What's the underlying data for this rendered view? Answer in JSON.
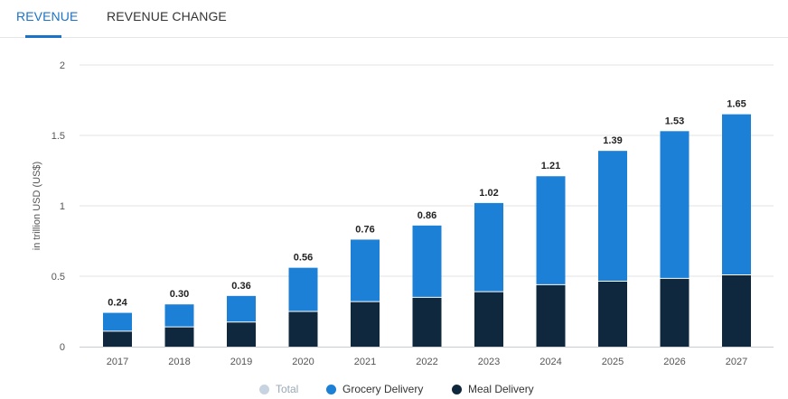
{
  "tabs": [
    {
      "label": "REVENUE",
      "active": true
    },
    {
      "label": "REVENUE CHANGE",
      "active": false
    }
  ],
  "colors": {
    "grocery": "#1b80d6",
    "meal": "#10283d",
    "total": "#c7d3e0",
    "accent": "#1a73c8"
  },
  "legend": [
    {
      "label": "Total",
      "color": "#c7d3e0",
      "disabled": true
    },
    {
      "label": "Grocery Delivery",
      "color": "#1b80d6",
      "disabled": false
    },
    {
      "label": "Meal Delivery",
      "color": "#10283d",
      "disabled": false
    }
  ],
  "chart_data": {
    "type": "bar",
    "stacked": true,
    "ylabel": "in trillion USD (US$)",
    "ylim": [
      0,
      2
    ],
    "yticks": [
      "0",
      "0.5",
      "1",
      "1.5",
      "2"
    ],
    "categories": [
      "2017",
      "2018",
      "2019",
      "2020",
      "2021",
      "2022",
      "2023",
      "2024",
      "2025",
      "2026",
      "2027"
    ],
    "series": [
      {
        "name": "Meal Delivery",
        "values": [
          0.11,
          0.14,
          0.175,
          0.25,
          0.32,
          0.35,
          0.39,
          0.44,
          0.465,
          0.485,
          0.51
        ]
      },
      {
        "name": "Grocery Delivery",
        "values": [
          0.13,
          0.16,
          0.185,
          0.31,
          0.44,
          0.51,
          0.63,
          0.77,
          0.925,
          1.045,
          1.14
        ]
      }
    ],
    "totals": [
      "0.24",
      "0.30",
      "0.36",
      "0.56",
      "0.76",
      "0.86",
      "1.02",
      "1.21",
      "1.39",
      "1.53",
      "1.65"
    ],
    "grid": true,
    "legend_position": "bottom"
  }
}
